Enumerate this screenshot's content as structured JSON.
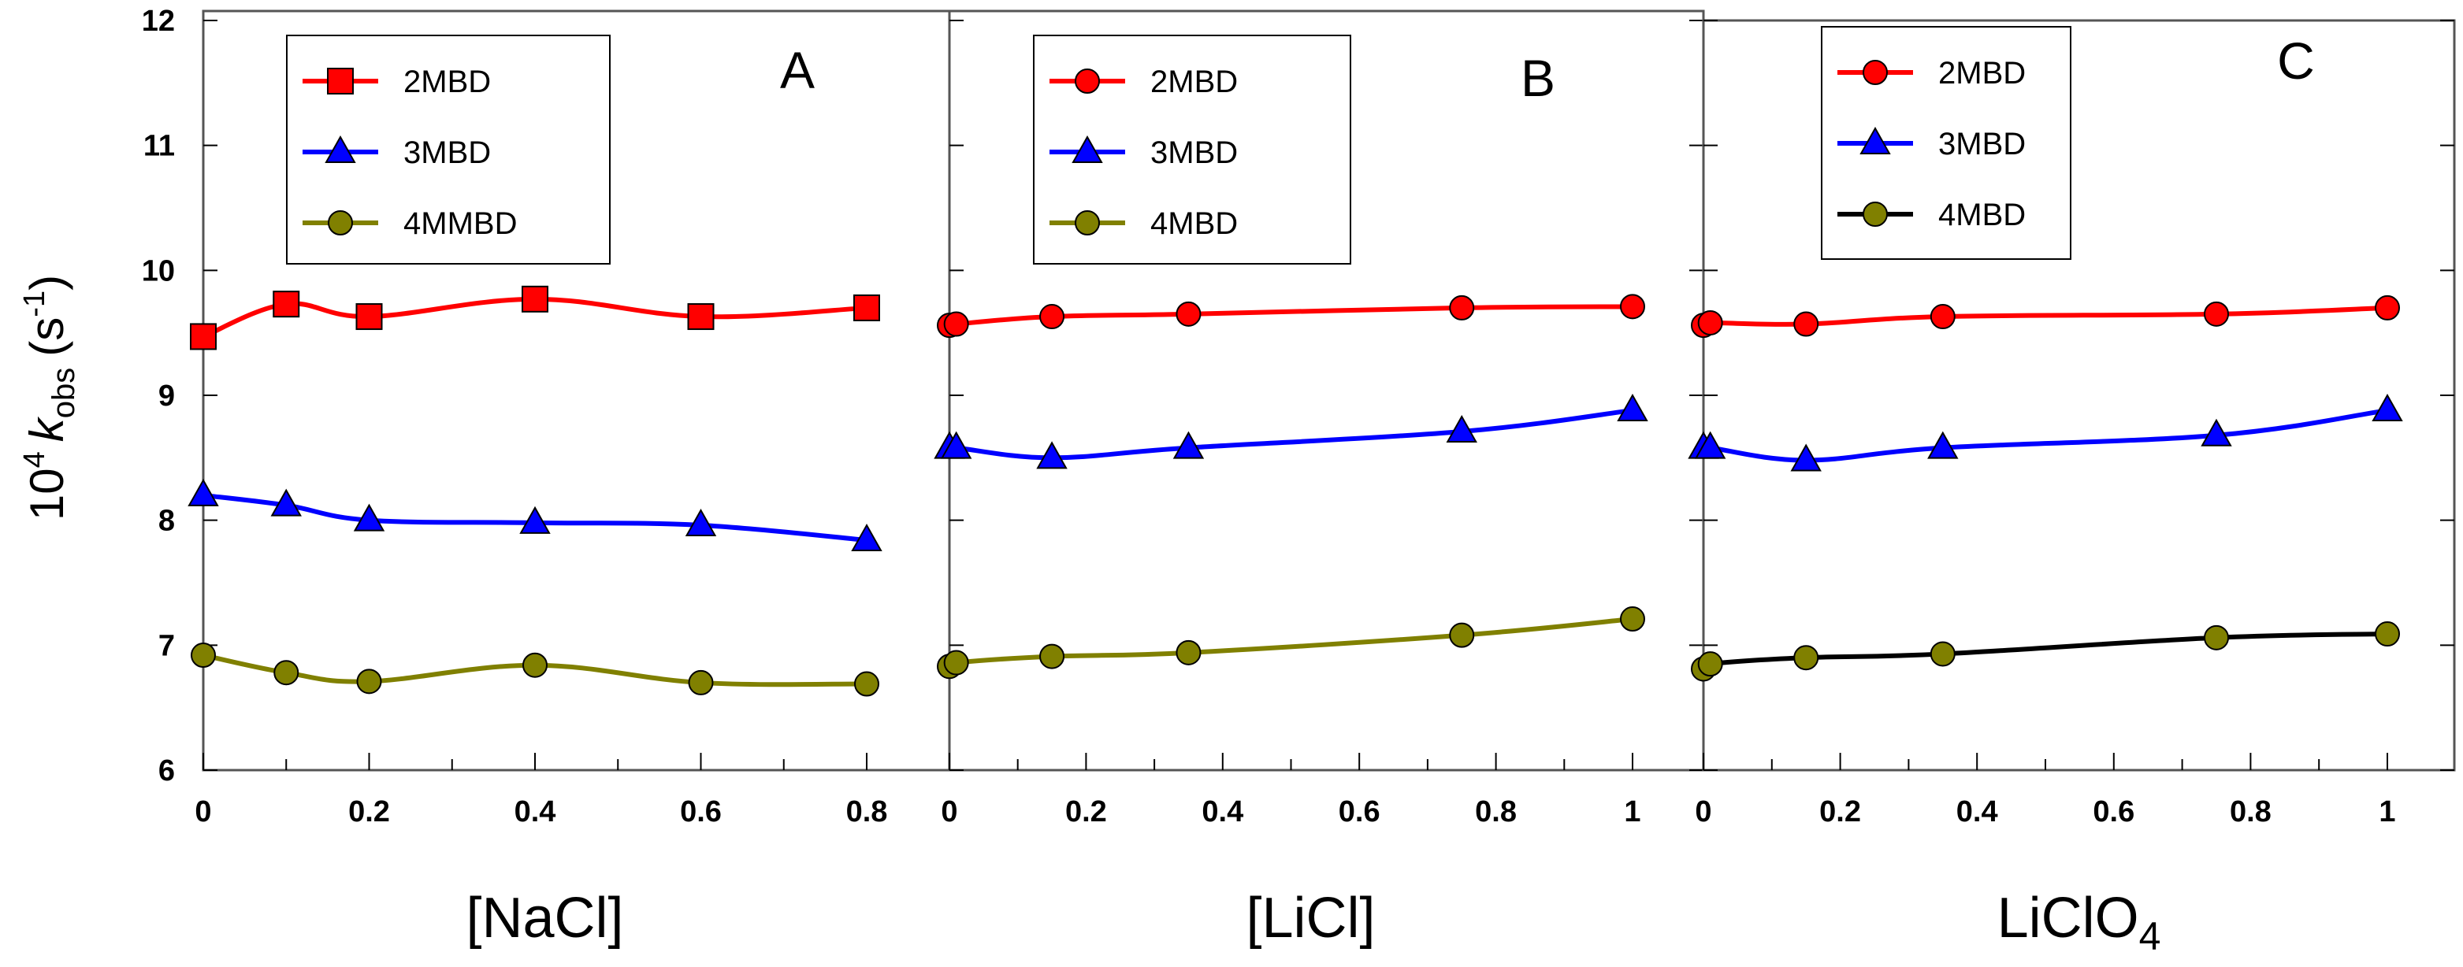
{
  "colors": {
    "red": "#ff0000",
    "blue": "#0000ff",
    "olive": "#808000",
    "black": "#000000",
    "frame": "#555555"
  },
  "ylabel": {
    "base": "10",
    "exp": "4",
    "k": "k",
    "sub": "obs",
    "unit_open": "(s",
    "unit_exp": "-1",
    "unit_close": ")"
  },
  "chart_data": [
    {
      "type": "line",
      "panel_label": "A",
      "xlabel": "[NaCl]",
      "xlim": [
        0,
        0.8
      ],
      "ylim": [
        6,
        12
      ],
      "xticks": [
        "0",
        "0.2",
        "0.4",
        "0.6",
        "0.8"
      ],
      "yticks": [
        "6",
        "7",
        "8",
        "9",
        "10",
        "11",
        "12"
      ],
      "legend_position": "top",
      "series": [
        {
          "name": "2MBD",
          "color": "#ff0000",
          "marker": "square",
          "x": [
            0,
            0.1,
            0.2,
            0.4,
            0.6,
            0.8
          ],
          "y": [
            9.47,
            9.73,
            9.63,
            9.77,
            9.63,
            9.7
          ]
        },
        {
          "name": "3MBD",
          "color": "#0000ff",
          "marker": "triangle",
          "x": [
            0,
            0.1,
            0.2,
            0.4,
            0.6,
            0.8
          ],
          "y": [
            8.2,
            8.12,
            8.0,
            7.98,
            7.96,
            7.84
          ]
        },
        {
          "name": "4MMBD",
          "color": "#808000",
          "marker": "circle",
          "x": [
            0,
            0.1,
            0.2,
            0.4,
            0.6,
            0.8
          ],
          "y": [
            6.92,
            6.78,
            6.71,
            6.84,
            6.7,
            6.69
          ]
        }
      ]
    },
    {
      "type": "line",
      "panel_label": "B",
      "xlabel": "[LiCl]",
      "xlim": [
        0,
        1
      ],
      "ylim": [
        6,
        12
      ],
      "xticks": [
        "0",
        "0.2",
        "0.4",
        "0.6",
        "0.8",
        "1"
      ],
      "yticks": [],
      "legend_position": "top",
      "series": [
        {
          "name": "2MBD",
          "color": "#ff0000",
          "marker": "circle",
          "x": [
            0,
            0.01,
            0.15,
            0.35,
            0.75,
            1.0
          ],
          "y": [
            9.56,
            9.57,
            9.63,
            9.65,
            9.7,
            9.71
          ]
        },
        {
          "name": "3MBD",
          "color": "#0000ff",
          "marker": "triangle",
          "x": [
            0,
            0.01,
            0.15,
            0.35,
            0.75,
            1.0
          ],
          "y": [
            8.58,
            8.58,
            8.5,
            8.58,
            8.71,
            8.88
          ]
        },
        {
          "name": "4MBD",
          "color": "#808000",
          "marker": "circle",
          "x": [
            0,
            0.01,
            0.15,
            0.35,
            0.75,
            1.0
          ],
          "y": [
            6.83,
            6.86,
            6.91,
            6.94,
            7.08,
            7.21
          ]
        }
      ]
    },
    {
      "type": "line",
      "panel_label": "C",
      "xlabel": "LiClO",
      "xlabel_sub": "4",
      "xlim": [
        0,
        1
      ],
      "ylim": [
        6,
        12
      ],
      "xticks": [
        "0",
        "0.2",
        "0.4",
        "0.6",
        "0.8",
        "1"
      ],
      "yticks": [],
      "legend_position": "top",
      "series": [
        {
          "name": "2MBD",
          "color": "#ff0000",
          "marker": "circle",
          "x": [
            0,
            0.01,
            0.15,
            0.35,
            0.75,
            1.0
          ],
          "y": [
            9.56,
            9.58,
            9.57,
            9.63,
            9.65,
            9.7
          ]
        },
        {
          "name": "3MBD",
          "color": "#0000ff",
          "marker": "triangle",
          "x": [
            0,
            0.01,
            0.15,
            0.35,
            0.75,
            1.0
          ],
          "y": [
            8.58,
            8.58,
            8.48,
            8.58,
            8.68,
            8.88
          ]
        },
        {
          "name": "4MBD",
          "color": "#808000",
          "line_color": "#000000",
          "marker": "circle",
          "x": [
            0,
            0.01,
            0.15,
            0.35,
            0.75,
            1.0
          ],
          "y": [
            6.81,
            6.85,
            6.9,
            6.93,
            7.06,
            7.09
          ]
        }
      ]
    }
  ]
}
